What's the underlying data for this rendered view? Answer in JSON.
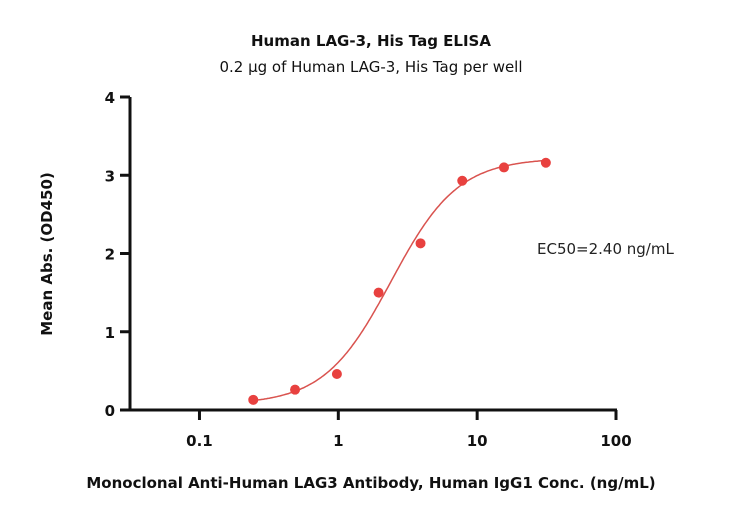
{
  "chart_data": {
    "type": "scatter",
    "title": "Human LAG-3, His Tag ELISA",
    "subtitle": "0.2 μg of Human LAG-3, His Tag per well",
    "xlabel": "Monoclonal Anti-Human LAG3 Antibody, Human IgG1 Conc. (ng/mL)",
    "ylabel": "Mean Abs. (OD450)",
    "xscale": "log",
    "xlim": [
      0.0316,
      100
    ],
    "ylim": [
      0,
      4
    ],
    "xticks": [
      0.1,
      1,
      10,
      100
    ],
    "xtick_labels": [
      "0.1",
      "1",
      "10",
      "100"
    ],
    "yticks": [
      0,
      1,
      2,
      3,
      4
    ],
    "ytick_labels": [
      "0",
      "1",
      "2",
      "3",
      "4"
    ],
    "grid": false,
    "series": [
      {
        "x": [
          0.244,
          0.488,
          0.977,
          1.95,
          3.91,
          7.81,
          15.6,
          31.25
        ],
        "y": [
          0.13,
          0.26,
          0.46,
          1.5,
          2.13,
          2.93,
          3.1,
          3.16
        ],
        "color": "#e8413f"
      }
    ],
    "fit": {
      "model": "4PL",
      "bottom": 0.07,
      "top": 3.22,
      "ec50": 2.4,
      "hill": 1.8,
      "color": "#d9534f"
    },
    "annotation": "EC50=2.40 ng/mL"
  }
}
